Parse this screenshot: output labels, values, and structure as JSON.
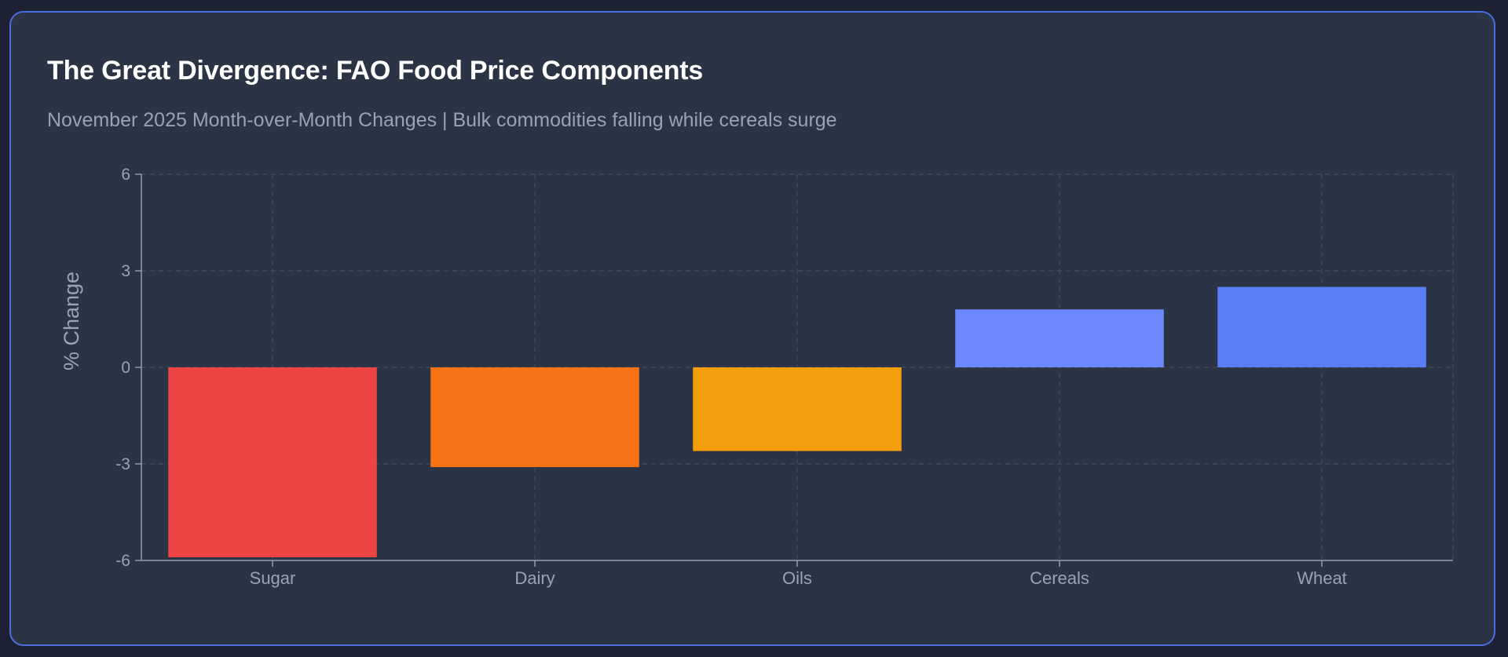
{
  "card": {
    "title": "The Great Divergence: FAO Food Price Components",
    "subtitle": "November 2025 Month-over-Month Changes | Bulk commodities falling while cereals surge"
  },
  "chart_data": {
    "type": "bar",
    "title": "The Great Divergence: FAO Food Price Components",
    "subtitle": "November 2025 Month-over-Month Changes | Bulk commodities falling while cereals surge",
    "xlabel": "",
    "ylabel": "% Change",
    "categories": [
      "Sugar",
      "Dairy",
      "Oils",
      "Cereals",
      "Wheat"
    ],
    "values": [
      -5.9,
      -3.1,
      -2.6,
      1.8,
      2.5
    ],
    "bar_colors": [
      "#ef4444",
      "#f97316",
      "#f59e0b",
      "#6b88fe",
      "#5a7ef5"
    ],
    "ylim": [
      -6,
      6
    ],
    "yticks": [
      -6,
      -3,
      0,
      3,
      6
    ],
    "grid": true,
    "legend": "none"
  },
  "colors": {
    "background": "#1c2233",
    "card": "#2b3445",
    "border": "#4a6ee0",
    "grid": "#434d5f",
    "axis": "#8f9bb0",
    "tick_text": "#97a3b6"
  }
}
